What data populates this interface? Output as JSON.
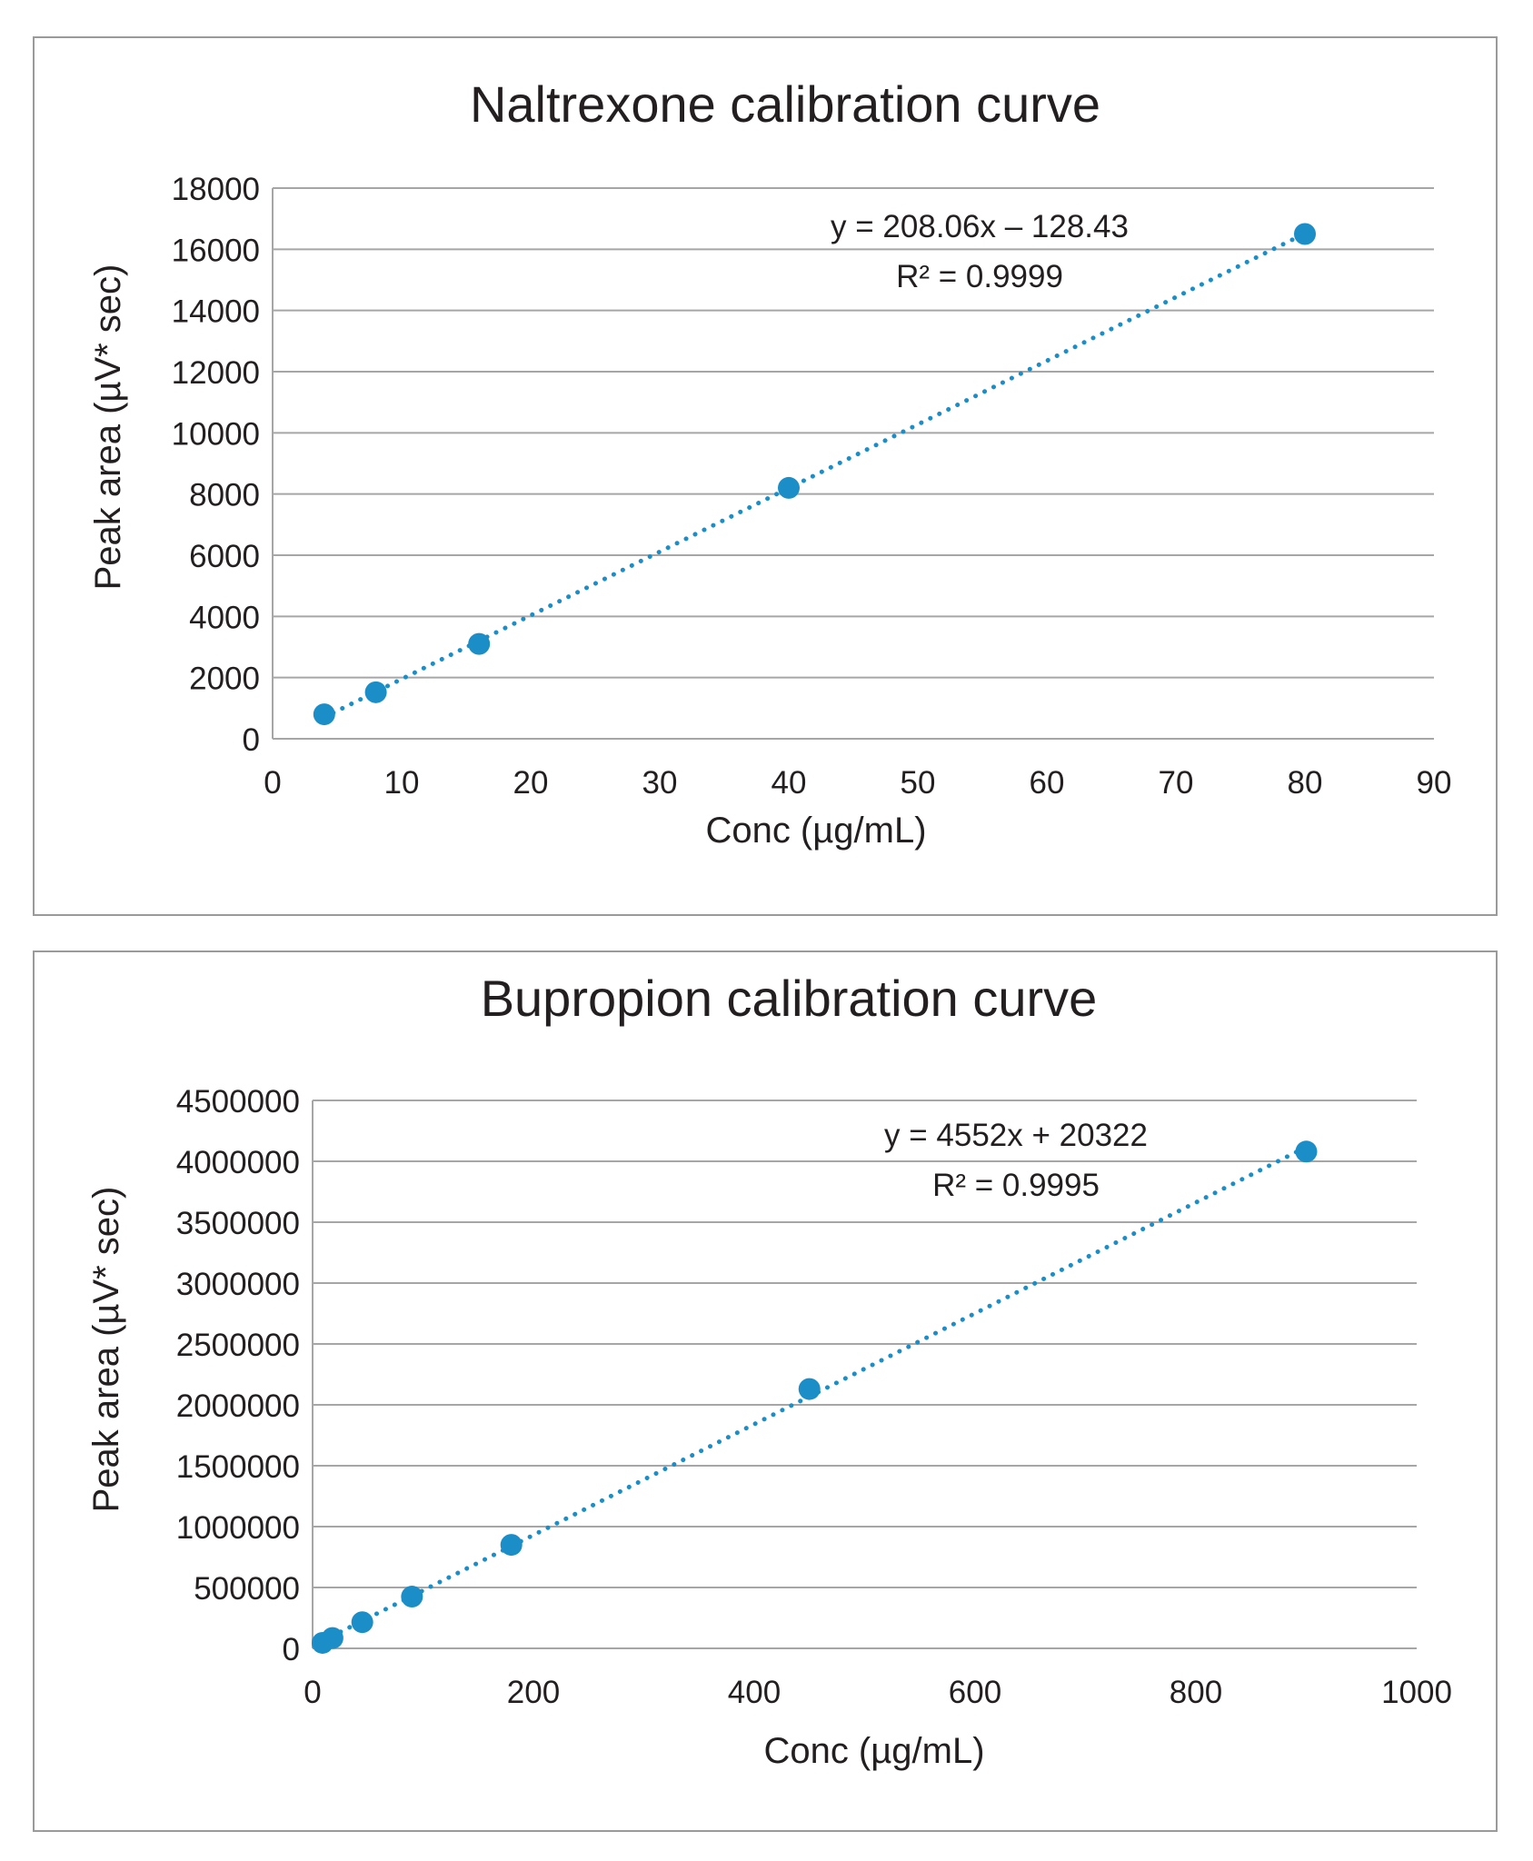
{
  "chart_data": [
    {
      "type": "scatter",
      "title": "Naltrexone calibration curve",
      "xlabel": "Conc (µg/mL)",
      "ylabel": "Peak area (µV* sec)",
      "xlim": [
        0,
        90
      ],
      "ylim": [
        0,
        18000
      ],
      "x_ticks": [
        "0",
        "10",
        "20",
        "30",
        "40",
        "50",
        "60",
        "70",
        "80",
        "90"
      ],
      "y_ticks": [
        "0",
        "2000",
        "4000",
        "6000",
        "8000",
        "10000",
        "12000",
        "14000",
        "16000",
        "18000"
      ],
      "grid": "horizontal",
      "points": [
        {
          "x": 4,
          "y": 800
        },
        {
          "x": 8,
          "y": 1520
        },
        {
          "x": 16,
          "y": 3100
        },
        {
          "x": 40,
          "y": 8200
        },
        {
          "x": 80,
          "y": 16500
        }
      ],
      "trendline": {
        "type": "linear",
        "slope": 208.06,
        "intercept": -128.43,
        "style": "dotted"
      },
      "equation_label": "y = 208.06x – 128.43",
      "r2_label": "R² = 0.9999",
      "colors": {
        "marker": "#1b8ec8",
        "trendline": "#1b8ec8",
        "grid": "#a6a6a6"
      }
    },
    {
      "type": "scatter",
      "title": "Bupropion calibration curve",
      "xlabel": "Conc (µg/mL)",
      "ylabel": "Peak area (µV* sec)",
      "xlim": [
        0,
        1000
      ],
      "ylim": [
        0,
        4500000
      ],
      "x_ticks": [
        "0",
        "200",
        "400",
        "600",
        "800",
        "1000"
      ],
      "y_ticks": [
        "0",
        "500000",
        "1000000",
        "1500000",
        "2000000",
        "2500000",
        "3000000",
        "3500000",
        "4000000",
        "4500000"
      ],
      "grid": "horizontal",
      "points": [
        {
          "x": 9,
          "y": 45000
        },
        {
          "x": 18,
          "y": 85000
        },
        {
          "x": 45,
          "y": 215000
        },
        {
          "x": 90,
          "y": 425000
        },
        {
          "x": 180,
          "y": 850000
        },
        {
          "x": 450,
          "y": 2130000
        },
        {
          "x": 900,
          "y": 4080000
        }
      ],
      "trendline": {
        "type": "linear",
        "slope": 4552,
        "intercept": 20322,
        "style": "dotted"
      },
      "equation_label": "y = 4552x + 20322",
      "r2_label": "R² = 0.9995",
      "colors": {
        "marker": "#1b8ec8",
        "trendline": "#1b8ec8",
        "grid": "#a6a6a6"
      }
    }
  ]
}
